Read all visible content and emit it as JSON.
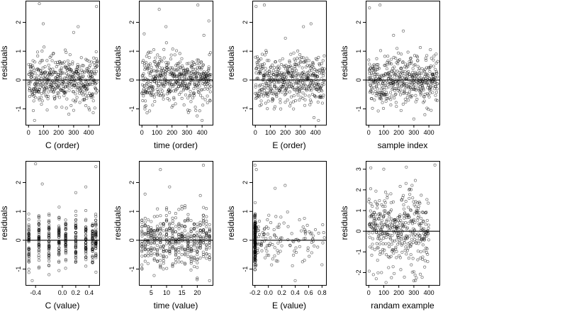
{
  "chart_data": [
    {
      "type": "scatter",
      "xlabel": "C (order)",
      "ylabel": "residuals",
      "xlim": [
        -20,
        470
      ],
      "ylim": [
        -1.55,
        2.75
      ],
      "xticks": [
        0,
        100,
        200,
        300,
        400
      ],
      "xticklabels": [
        "0",
        "100",
        "200",
        "300",
        "400"
      ],
      "yticks": [
        -1,
        0,
        1,
        2
      ],
      "yticklabels": [
        "-1",
        "0",
        "1",
        "2"
      ],
      "hline": 0,
      "grid": false,
      "gen": {
        "mode": "index",
        "n": 460,
        "seed": 11,
        "sd": 0.42,
        "outliers": [
          [
            72,
            2.65
          ],
          [
            98,
            1.95
          ],
          [
            300,
            1.65
          ],
          [
            330,
            1.85
          ],
          [
            452,
            2.55
          ],
          [
            40,
            -1.4
          ],
          [
            300,
            -1.05
          ]
        ]
      }
    },
    {
      "type": "scatter",
      "xlabel": "time (order)",
      "ylabel": "residuals",
      "xlim": [
        -20,
        470
      ],
      "ylim": [
        -1.55,
        2.75
      ],
      "xticks": [
        0,
        100,
        200,
        300,
        400
      ],
      "xticklabels": [
        "0",
        "100",
        "200",
        "300",
        "400"
      ],
      "yticks": [
        -1,
        0,
        1,
        2
      ],
      "yticklabels": [
        "-1",
        "0",
        "1",
        "2"
      ],
      "hline": 0,
      "grid": false,
      "gen": {
        "mode": "index",
        "n": 460,
        "seed": 23,
        "sd": 0.42,
        "outliers": [
          [
            15,
            1.6
          ],
          [
            115,
            2.45
          ],
          [
            160,
            1.85
          ],
          [
            372,
            2.6
          ],
          [
            412,
            1.55
          ],
          [
            445,
            2.05
          ],
          [
            400,
            -1.4
          ],
          [
            20,
            -1.0
          ]
        ]
      }
    },
    {
      "type": "scatter",
      "xlabel": "E (order)",
      "ylabel": "residuals",
      "xlim": [
        -20,
        470
      ],
      "ylim": [
        -1.55,
        2.75
      ],
      "xticks": [
        0,
        100,
        200,
        300,
        400
      ],
      "xticklabels": [
        "0",
        "100",
        "200",
        "300",
        "400"
      ],
      "yticks": [
        -1,
        0,
        1,
        2
      ],
      "yticklabels": [
        "-1",
        "0",
        "1",
        "2"
      ],
      "hline": 0,
      "grid": false,
      "gen": {
        "mode": "index",
        "n": 460,
        "seed": 37,
        "sd": 0.42,
        "outliers": [
          [
            5,
            2.55
          ],
          [
            60,
            2.6
          ],
          [
            320,
            1.85
          ],
          [
            370,
            1.95
          ],
          [
            200,
            1.45
          ],
          [
            420,
            -1.4
          ],
          [
            125,
            -1.0
          ]
        ]
      }
    },
    {
      "type": "scatter",
      "xlabel": "sample index",
      "ylabel": "residuals",
      "xlim": [
        -20,
        470
      ],
      "ylim": [
        -1.55,
        2.75
      ],
      "xticks": [
        0,
        100,
        200,
        300,
        400
      ],
      "xticklabels": [
        "0",
        "100",
        "200",
        "300",
        "400"
      ],
      "yticks": [
        -1,
        0,
        1,
        2
      ],
      "yticklabels": [
        "-1",
        "0",
        "1",
        "2"
      ],
      "hline": 0,
      "grid": false,
      "gen": {
        "mode": "index",
        "n": 460,
        "seed": 41,
        "sd": 0.42,
        "outliers": [
          [
            5,
            2.5
          ],
          [
            75,
            2.6
          ],
          [
            165,
            1.55
          ],
          [
            230,
            1.7
          ],
          [
            300,
            -1.35
          ],
          [
            415,
            -1.05
          ]
        ]
      }
    },
    {
      "type": "scatter",
      "xlabel": "C (value)",
      "ylabel": "residuals",
      "xlim": [
        -0.55,
        0.55
      ],
      "ylim": [
        -1.55,
        2.75
      ],
      "xticks": [
        -0.4,
        0,
        0.2,
        0.4
      ],
      "xticklabels": [
        "-0.4",
        "0.0",
        "0.2",
        "0.4"
      ],
      "yticks": [
        -1,
        0,
        1,
        2
      ],
      "yticklabels": [
        "-1",
        "0",
        "1",
        "2"
      ],
      "hline": 0,
      "grid": false,
      "gen": {
        "mode": "levels",
        "levels": [
          -0.5,
          -0.35,
          -0.2,
          -0.05,
          0.05,
          0.2,
          0.35,
          0.45,
          0.5
        ],
        "per_level": 48,
        "seed": 53,
        "sd": 0.42,
        "outliers": [
          [
            -0.4,
            2.65
          ],
          [
            -0.3,
            1.95
          ],
          [
            0.2,
            1.65
          ],
          [
            0.35,
            1.85
          ],
          [
            0.5,
            2.55
          ],
          [
            -0.45,
            -1.4
          ],
          [
            -0.05,
            -1.05
          ]
        ]
      }
    },
    {
      "type": "scatter",
      "xlabel": "time (value)",
      "ylabel": "residuals",
      "xlim": [
        1,
        25
      ],
      "ylim": [
        -1.55,
        2.75
      ],
      "xticks": [
        5,
        10,
        15,
        20
      ],
      "xticklabels": [
        "5",
        "10",
        "15",
        "20"
      ],
      "yticks": [
        -1,
        0,
        1,
        2
      ],
      "yticklabels": [
        "-1",
        "0",
        "1",
        "2"
      ],
      "hline": 0,
      "grid": false,
      "gen": {
        "mode": "levels",
        "levels": [
          2,
          3,
          4,
          5,
          6,
          7,
          8,
          9,
          10,
          11,
          12,
          13,
          14,
          15,
          16,
          17,
          18,
          19,
          20,
          21,
          22,
          23,
          24
        ],
        "per_level": 20,
        "seed": 67,
        "sd": 0.42,
        "outliers": [
          [
            3,
            1.6
          ],
          [
            8,
            2.45
          ],
          [
            11,
            1.85
          ],
          [
            22,
            2.6
          ],
          [
            21,
            1.55
          ],
          [
            24,
            -1.4
          ],
          [
            2,
            -1.0
          ]
        ]
      }
    },
    {
      "type": "scatter",
      "xlabel": "E (value)",
      "ylabel": "residuals",
      "xlim": [
        -0.24,
        0.86
      ],
      "ylim": [
        -1.55,
        2.75
      ],
      "xticks": [
        -0.2,
        0,
        0.2,
        0.4,
        0.6,
        0.8
      ],
      "xticklabels": [
        "-0.2",
        "0.0",
        "0.2",
        "0.4",
        "0.6",
        "0.8"
      ],
      "yticks": [
        -1,
        0,
        1,
        2
      ],
      "yticklabels": [
        "-1",
        "0",
        "1",
        "2"
      ],
      "hline": 0,
      "grid": false,
      "gen": {
        "mode": "skew",
        "n": 300,
        "cluster_n": 160,
        "cluster_x": -0.2,
        "seed": 79,
        "sd": 0.42,
        "outliers": [
          [
            -0.2,
            2.6
          ],
          [
            -0.18,
            2.45
          ],
          [
            0.1,
            1.8
          ],
          [
            0.25,
            1.9
          ],
          [
            0.4,
            -1.4
          ],
          [
            0.8,
            -0.85
          ]
        ]
      }
    },
    {
      "type": "scatter",
      "xlabel": "randam example",
      "ylabel": "residuals",
      "xlim": [
        -20,
        470
      ],
      "ylim": [
        -2.6,
        3.4
      ],
      "xticks": [
        0,
        100,
        200,
        300,
        400
      ],
      "xticklabels": [
        "0",
        "100",
        "200",
        "300",
        "400"
      ],
      "yticks": [
        -2,
        -1,
        0,
        1,
        2,
        3
      ],
      "yticklabels": [
        "-2",
        "-1",
        "0",
        "1",
        "2",
        "3"
      ],
      "hline": 0,
      "grid": false,
      "gen": {
        "mode": "index",
        "n": 400,
        "seed": 97,
        "sd": 1.0,
        "outliers": [
          [
            100,
            3.0
          ],
          [
            250,
            3.1
          ],
          [
            440,
            3.2
          ],
          [
            50,
            -2.3
          ],
          [
            300,
            -2.4
          ]
        ]
      }
    }
  ]
}
